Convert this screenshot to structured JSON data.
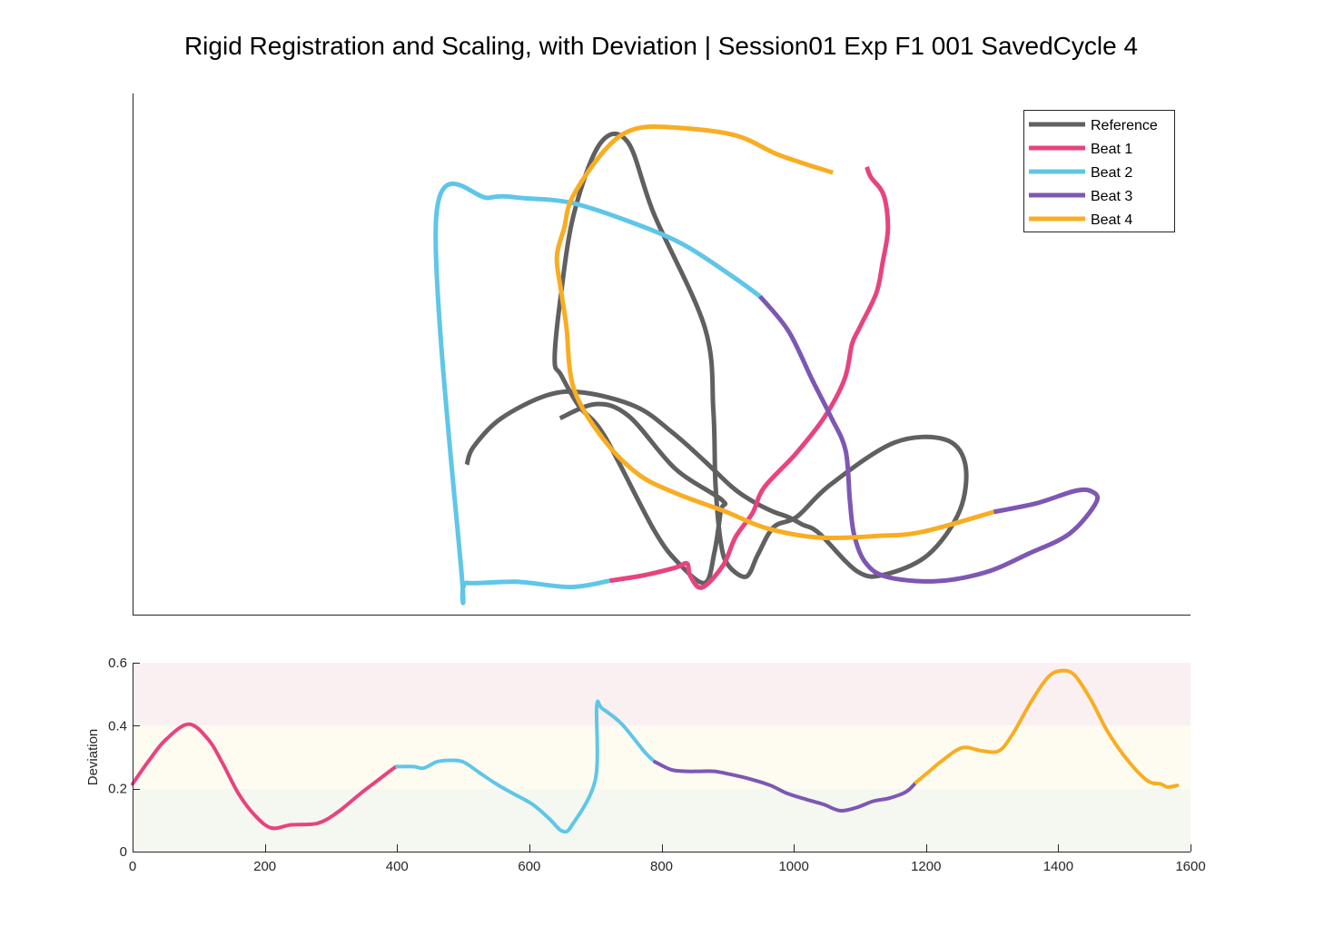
{
  "title": "Rigid Registration and Scaling, with Deviation | Session01 Exp F1 001 SavedCycle 4",
  "colors": {
    "reference": "#606060",
    "beat1": "#e8437f",
    "beat2": "#5fc6e8",
    "beat3": "#7e57b4",
    "beat4": "#f8ad22",
    "band_low": "#f4f8f0",
    "band_mid": "#fefcf1",
    "band_high": "#faf0f2"
  },
  "chart_data": [
    {
      "type": "line",
      "subtype": "2D trajectory (axes hidden)",
      "legend": {
        "placement": "top-right",
        "entries": [
          "Reference",
          "Beat 1",
          "Beat 2",
          "Beat 3",
          "Beat 4"
        ]
      },
      "xlim": [
        0,
        1000
      ],
      "ylim": [
        0,
        1000
      ],
      "series": [
        {
          "name": "Reference",
          "points": [
            [
              316,
              288
            ],
            [
              322,
              321
            ],
            [
              348,
              376
            ],
            [
              392,
              421
            ],
            [
              427,
              426
            ],
            [
              476,
              399
            ],
            [
              510,
              350
            ],
            [
              540,
              296
            ],
            [
              566,
              246
            ],
            [
              584,
              220
            ],
            [
              604,
              199
            ],
            [
              620,
              187
            ],
            [
              633,
              173
            ],
            [
              649,
              156
            ],
            [
              685,
              83
            ],
            [
              711,
              77
            ],
            [
              752,
              115
            ],
            [
              782,
              200
            ],
            [
              787,
              289
            ],
            [
              768,
              336
            ],
            [
              720,
              330
            ],
            [
              660,
              250
            ],
            [
              628,
              188
            ],
            [
              606,
              168
            ],
            [
              591,
              115
            ],
            [
              580,
              73
            ],
            [
              563,
              95
            ],
            [
              556,
              139
            ],
            [
              551,
              250
            ],
            [
              549,
              390
            ],
            [
              541,
              550
            ],
            [
              493,
              768
            ],
            [
              468,
              907
            ],
            [
              442,
              904
            ],
            [
              417,
              768
            ],
            [
              404,
              600
            ],
            [
              399,
              488
            ],
            [
              405,
              460
            ],
            [
              422,
              400
            ],
            [
              446,
              343
            ],
            [
              493,
              162
            ],
            [
              517,
              97
            ],
            [
              541,
              61
            ],
            [
              550,
              120
            ],
            [
              556,
              200
            ],
            [
              557,
              220
            ],
            [
              513,
              280
            ],
            [
              469,
              381
            ],
            [
              438,
              404
            ],
            [
              404,
              377
            ]
          ]
        },
        {
          "name": "Beat 1",
          "points": [
            [
              451,
              65
            ],
            [
              482,
              75
            ],
            [
              513,
              90
            ],
            [
              524,
              98
            ],
            [
              527,
              75
            ],
            [
              538,
              52
            ],
            [
              558,
              94
            ],
            [
              570,
              149
            ],
            [
              586,
              195
            ],
            [
              597,
              244
            ],
            [
              627,
              309
            ],
            [
              654,
              379
            ],
            [
              673,
              452
            ],
            [
              680,
              519
            ],
            [
              687,
              550
            ],
            [
              703,
              617
            ],
            [
              709,
              676
            ],
            [
              714,
              741
            ],
            [
              710,
              805
            ],
            [
              698,
              839
            ],
            [
              694,
              859
            ]
          ]
        },
        {
          "name": "Beat 2",
          "points": [
            [
              451,
              65
            ],
            [
              414,
              53
            ],
            [
              363,
              63
            ],
            [
              316,
              61
            ],
            [
              311,
              79
            ],
            [
              287,
              764
            ],
            [
              337,
              800
            ],
            [
              371,
              799
            ],
            [
              415,
              790
            ],
            [
              466,
              757
            ],
            [
              519,
              712
            ],
            [
              567,
              649
            ],
            [
              593,
              611
            ]
          ]
        },
        {
          "name": "Beat 3",
          "points": [
            [
              593,
              611
            ],
            [
              620,
              544
            ],
            [
              643,
              448
            ],
            [
              660,
              380
            ],
            [
              674,
              315
            ],
            [
              678,
              219
            ],
            [
              682,
              154
            ],
            [
              692,
              102
            ],
            [
              712,
              73
            ],
            [
              758,
              64
            ],
            [
              806,
              81
            ],
            [
              847,
              117
            ],
            [
              886,
              156
            ],
            [
              911,
              216
            ],
            [
              906,
              237
            ],
            [
              890,
              237
            ],
            [
              855,
              214
            ],
            [
              814,
              197
            ]
          ]
        },
        {
          "name": "Beat 4",
          "points": [
            [
              814,
              197
            ],
            [
              747,
              159
            ],
            [
              705,
              151
            ],
            [
              648,
              148
            ],
            [
              599,
              166
            ],
            [
              560,
              198
            ],
            [
              516,
              231
            ],
            [
              479,
              268
            ],
            [
              445,
              337
            ],
            [
              417,
              434
            ],
            [
              410,
              554
            ],
            [
              405,
              622
            ],
            [
              401,
              686
            ],
            [
              408,
              742
            ],
            [
              416,
              802
            ],
            [
              447,
              893
            ],
            [
              475,
              932
            ],
            [
              517,
              934
            ],
            [
              571,
              919
            ],
            [
              611,
              882
            ],
            [
              662,
              848
            ]
          ]
        }
      ]
    },
    {
      "type": "line",
      "ylabel": "Deviation",
      "xlim": [
        0,
        1600
      ],
      "ylim": [
        0,
        0.6
      ],
      "xticks": [
        0,
        200,
        400,
        600,
        800,
        1000,
        1200,
        1400,
        1600
      ],
      "yticks": [
        0,
        0.2,
        0.4,
        0.6
      ],
      "xtick_labels": [
        "0",
        "200",
        "400",
        "600",
        "800",
        "1000",
        "1200",
        "1400",
        "1600"
      ],
      "ytick_labels": [
        "0",
        "0.2",
        "0.4",
        "0.6"
      ],
      "bands": [
        {
          "from": 0,
          "to": 0.2,
          "level": "low"
        },
        {
          "from": 0.2,
          "to": 0.4,
          "level": "mid"
        },
        {
          "from": 0.4,
          "to": 0.6,
          "level": "high"
        }
      ],
      "series": [
        {
          "name": "Beat 1",
          "points": [
            [
              0,
              0.215
            ],
            [
              25,
              0.29
            ],
            [
              50,
              0.355
            ],
            [
              85,
              0.405
            ],
            [
              115,
              0.355
            ],
            [
              135,
              0.285
            ],
            [
              160,
              0.185
            ],
            [
              185,
              0.115
            ],
            [
              210,
              0.075
            ],
            [
              240,
              0.085
            ],
            [
              280,
              0.09
            ],
            [
              310,
              0.125
            ],
            [
              345,
              0.185
            ],
            [
              370,
              0.225
            ],
            [
              395,
              0.265
            ],
            [
              400,
              0.27
            ]
          ]
        },
        {
          "name": "Beat 2",
          "points": [
            [
              400,
              0.27
            ],
            [
              425,
              0.27
            ],
            [
              440,
              0.265
            ],
            [
              460,
              0.285
            ],
            [
              480,
              0.29
            ],
            [
              500,
              0.285
            ],
            [
              525,
              0.25
            ],
            [
              550,
              0.215
            ],
            [
              575,
              0.185
            ],
            [
              605,
              0.15
            ],
            [
              630,
              0.105
            ],
            [
              650,
              0.065
            ],
            [
              665,
              0.085
            ],
            [
              700,
              0.23
            ],
            [
              702,
              0.46
            ],
            [
              710,
              0.455
            ],
            [
              740,
              0.405
            ],
            [
              775,
              0.315
            ],
            [
              790,
              0.285
            ]
          ]
        },
        {
          "name": "Beat 3",
          "points": [
            [
              790,
              0.285
            ],
            [
              815,
              0.26
            ],
            [
              840,
              0.255
            ],
            [
              855,
              0.255
            ],
            [
              880,
              0.255
            ],
            [
              905,
              0.245
            ],
            [
              935,
              0.23
            ],
            [
              965,
              0.21
            ],
            [
              990,
              0.185
            ],
            [
              1020,
              0.165
            ],
            [
              1045,
              0.15
            ],
            [
              1070,
              0.13
            ],
            [
              1095,
              0.14
            ],
            [
              1120,
              0.16
            ],
            [
              1145,
              0.17
            ],
            [
              1170,
              0.19
            ],
            [
              1185,
              0.22
            ]
          ]
        },
        {
          "name": "Beat 4",
          "points": [
            [
              1185,
              0.22
            ],
            [
              1205,
              0.255
            ],
            [
              1225,
              0.29
            ],
            [
              1255,
              0.33
            ],
            [
              1285,
              0.32
            ],
            [
              1310,
              0.32
            ],
            [
              1330,
              0.37
            ],
            [
              1360,
              0.48
            ],
            [
              1385,
              0.555
            ],
            [
              1405,
              0.575
            ],
            [
              1425,
              0.56
            ],
            [
              1450,
              0.48
            ],
            [
              1475,
              0.38
            ],
            [
              1505,
              0.29
            ],
            [
              1535,
              0.225
            ],
            [
              1555,
              0.215
            ],
            [
              1565,
              0.205
            ],
            [
              1580,
              0.21
            ]
          ]
        }
      ]
    }
  ]
}
